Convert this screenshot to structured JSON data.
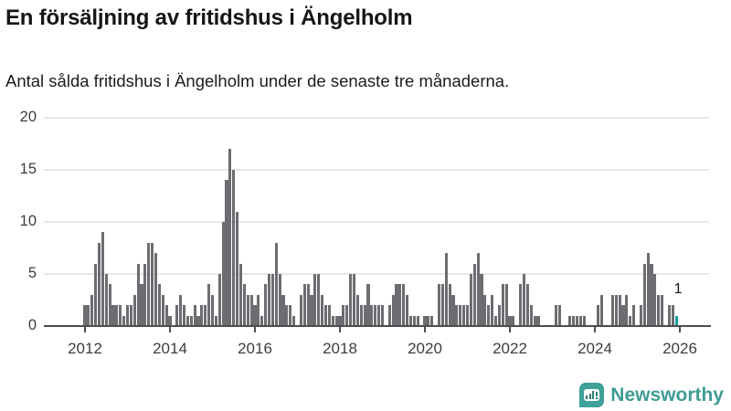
{
  "header": {
    "title": "En försäljning av fritidshus i Ängelholm",
    "subtitle": "Antal sålda fritidshus i Ängelholm under de senaste tre månaderna."
  },
  "chart_data": {
    "type": "bar",
    "title": "En försäljning av fritidshus i Ängelholm",
    "subtitle": "Antal sålda fritidshus i Ängelholm under de senaste tre månaderna.",
    "x_start_month": "2012-01",
    "x_end_month": "2025-12",
    "x_unit": "month",
    "ylim": [
      0,
      20
    ],
    "y_tick_values": [
      0,
      5,
      10,
      15,
      20
    ],
    "x_tick_labels": [
      "2012",
      "2014",
      "2016",
      "2018",
      "2020",
      "2022",
      "2024",
      "2026"
    ],
    "grid": "horizontal",
    "bar_color": "#6c6c71",
    "highlight_color": "#17a09e",
    "highlight_index": 167,
    "last_value_label": "1",
    "values": [
      2,
      2,
      3,
      6,
      8,
      9,
      5,
      4,
      2,
      2,
      2,
      1,
      2,
      2,
      3,
      6,
      4,
      6,
      8,
      8,
      7,
      4,
      3,
      2,
      1,
      0,
      2,
      3,
      2,
      1,
      1,
      2,
      1,
      2,
      2,
      4,
      3,
      1,
      5,
      10,
      14,
      17,
      15,
      11,
      6,
      4,
      3,
      3,
      2,
      3,
      1,
      4,
      5,
      5,
      8,
      5,
      3,
      2,
      2,
      1,
      0,
      3,
      4,
      4,
      3,
      5,
      5,
      3,
      2,
      2,
      1,
      1,
      1,
      2,
      2,
      5,
      5,
      3,
      2,
      2,
      4,
      2,
      2,
      2,
      2,
      0,
      2,
      3,
      4,
      4,
      4,
      3,
      1,
      1,
      1,
      0,
      1,
      1,
      1,
      0,
      4,
      4,
      7,
      4,
      3,
      2,
      2,
      2,
      2,
      5,
      6,
      7,
      5,
      3,
      2,
      3,
      1,
      2,
      4,
      4,
      1,
      1,
      0,
      4,
      5,
      4,
      2,
      1,
      1,
      0,
      0,
      0,
      0,
      2,
      2,
      0,
      0,
      1,
      1,
      1,
      1,
      1,
      0,
      0,
      0,
      2,
      3,
      0,
      0,
      3,
      3,
      3,
      2,
      3,
      1,
      2,
      0,
      2,
      6,
      7,
      6,
      5,
      3,
      3,
      0,
      2,
      2,
      1
    ]
  },
  "footer": {
    "brand": "Newsworthy",
    "brand_color": "#3f9c93",
    "logo_icon": "bar-chart-speech-bubble-icon"
  }
}
